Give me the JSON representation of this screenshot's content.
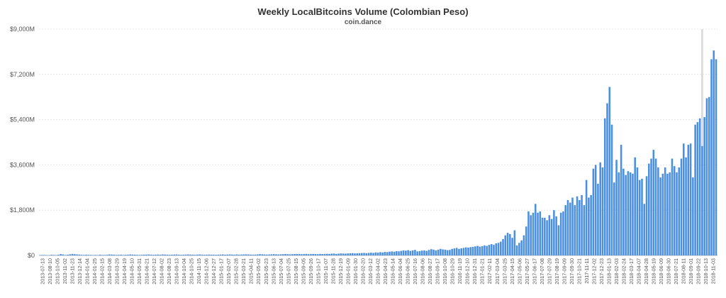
{
  "chart_data": {
    "type": "bar",
    "title": "Weekly LocalBitcoins Volume (Colombian Peso)",
    "subtitle": "coin.dance",
    "xlabel": "",
    "ylabel": "",
    "ylim": [
      0,
      9000
    ],
    "grid": true,
    "legend": "none",
    "bar_color": "#4a8fe0",
    "highlight_color": "#d9d9d9",
    "y_ticks": [
      "$0",
      "$1,800M",
      "$3,600M",
      "$5,400M",
      "$7,200M",
      "$9,000M"
    ],
    "x_tick_labels": [
      "2013-07-13",
      "2013-08-10",
      "2013-10-05",
      "2013-11-02",
      "2013-11-23",
      "2013-12-14",
      "2014-01-04",
      "2014-01-25",
      "2014-02-15",
      "2014-03-08",
      "2014-03-29",
      "2014-04-19",
      "2014-05-10",
      "2014-05-31",
      "2014-06-21",
      "2014-07-12",
      "2014-08-02",
      "2014-08-23",
      "2014-09-13",
      "2014-10-04",
      "2014-10-25",
      "2014-11-15",
      "2014-12-06",
      "2014-12-27",
      "2015-01-17",
      "2015-02-07",
      "2015-02-28",
      "2015-03-21",
      "2015-04-11",
      "2015-05-02",
      "2015-05-23",
      "2015-06-13",
      "2015-07-04",
      "2015-07-25",
      "2015-08-15",
      "2015-09-05",
      "2015-09-26",
      "2015-10-17",
      "2015-11-07",
      "2015-11-28",
      "2015-12-19",
      "2016-01-09",
      "2016-01-30",
      "2016-02-20",
      "2016-03-12",
      "2016-04-02",
      "2016-04-23",
      "2016-05-14",
      "2016-06-04",
      "2016-06-25",
      "2016-07-16",
      "2016-08-06",
      "2016-08-27",
      "2016-09-17",
      "2016-10-08",
      "2016-10-29",
      "2016-11-19",
      "2016-12-10",
      "2016-12-31",
      "2017-01-21",
      "2017-02-11",
      "2017-03-04",
      "2017-03-25",
      "2017-04-15",
      "2017-05-06",
      "2017-05-27",
      "2017-06-17",
      "2017-07-08",
      "2017-07-29",
      "2017-08-19",
      "2017-09-09",
      "2017-09-30",
      "2017-10-21",
      "2017-11-11",
      "2017-12-02",
      "2017-12-23",
      "2018-01-13",
      "2018-02-03",
      "2018-02-24",
      "2018-03-17",
      "2018-04-07",
      "2018-04-28",
      "2018-05-19",
      "2018-06-09",
      "2018-06-30",
      "2018-07-21",
      "2018-08-11",
      "2018-09-01",
      "2018-09-22",
      "2018-10-13",
      "2018-11-03"
    ],
    "values": [
      15,
      18,
      20,
      12,
      10,
      25,
      20,
      15,
      30,
      55,
      40,
      20,
      30,
      45,
      60,
      50,
      40,
      35,
      25,
      20,
      30,
      25,
      20,
      15,
      20,
      15,
      30,
      20,
      20,
      25,
      40,
      35,
      30,
      20,
      25,
      30,
      20,
      25,
      30,
      40,
      35,
      30,
      25,
      20,
      25,
      30,
      35,
      40,
      30,
      25,
      30,
      35,
      30,
      40,
      35,
      30,
      25,
      30,
      35,
      40,
      30,
      25,
      30,
      35,
      40,
      35,
      30,
      25,
      35,
      40,
      30,
      25,
      30,
      35,
      30,
      30,
      25,
      30,
      35,
      40,
      30,
      35,
      40,
      35,
      30,
      40,
      30,
      35,
      40,
      45,
      40,
      35,
      30,
      35,
      40,
      50,
      45,
      40,
      35,
      40,
      45,
      50,
      45,
      40,
      45,
      50,
      55,
      50,
      45,
      50,
      55,
      60,
      55,
      50,
      55,
      60,
      50,
      55,
      60,
      55,
      50,
      60,
      55,
      60,
      65,
      60,
      70,
      75,
      60,
      70,
      80,
      75,
      70,
      80,
      85,
      90,
      80,
      85,
      90,
      95,
      100,
      90,
      100,
      110,
      100,
      120,
      110,
      130,
      120,
      140,
      130,
      150,
      160,
      150,
      170,
      160,
      180,
      200,
      190,
      210,
      180,
      200,
      220,
      160,
      170,
      190,
      200,
      180,
      220,
      250,
      230,
      200,
      230,
      260,
      240,
      230,
      210,
      220,
      260,
      280,
      300,
      260,
      280,
      300,
      320,
      310,
      330,
      340,
      360,
      380,
      350,
      370,
      400,
      380,
      420,
      450,
      420,
      480,
      500,
      550,
      650,
      800,
      900,
      850,
      700,
      1000,
      400,
      500,
      600,
      800,
      1150,
      1750,
      1600,
      1700,
      2050,
      1700,
      1750,
      1500,
      1500,
      1400,
      1600,
      1450,
      1800,
      1550,
      1200,
      1700,
      1750,
      2000,
      2200,
      2100,
      2300,
      2000,
      2350,
      2200,
      2400,
      2000,
      3000,
      2300,
      2400,
      3450,
      3600,
      2850,
      3700,
      3500,
      5450,
      6050,
      6700,
      5200,
      2900,
      3800,
      3300,
      4400,
      3450,
      3200,
      3350,
      3300,
      3250,
      3900,
      3500,
      3000,
      3050,
      2050,
      3150,
      3650,
      3850,
      4200,
      3850,
      3500,
      3100,
      3250,
      3500,
      3250,
      3300,
      3850,
      3550,
      3300,
      3500,
      3850,
      4450,
      3900,
      4400,
      4450,
      3100,
      5200,
      5300,
      5450,
      4350,
      5500,
      6250,
      6300,
      7800,
      8150,
      7800
    ],
    "highlight": {
      "index": 286,
      "value": 9000
    }
  }
}
